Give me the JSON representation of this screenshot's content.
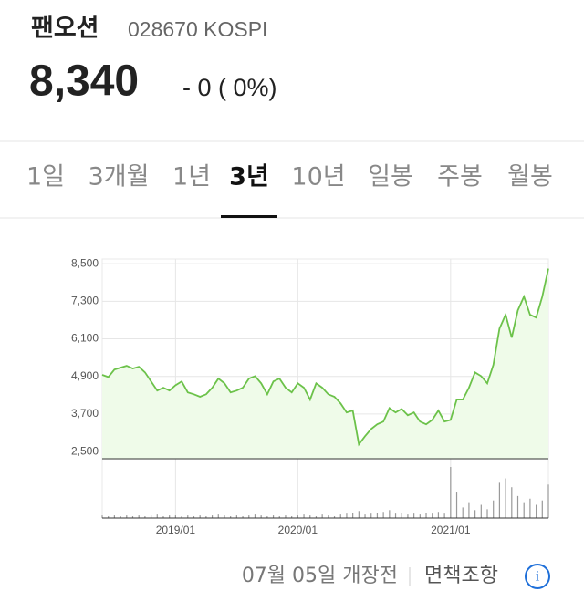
{
  "header": {
    "name": "팬오션",
    "code": "028670 KOSPI",
    "price": "8,340",
    "change": "- 0 ( 0%)"
  },
  "tabs": {
    "items": [
      "1일",
      "3개월",
      "1년",
      "3년",
      "10년",
      "일봉",
      "주봉",
      "월봉"
    ],
    "active": 3
  },
  "footer": {
    "status": "07월 05일 개장전",
    "disclaimer": "면책조항"
  },
  "chart_data": [
    {
      "type": "line",
      "color": "#6cc24a",
      "fill": "#effbe9",
      "categories": [
        null,
        null,
        null,
        null,
        null,
        null,
        null,
        null,
        null,
        null,
        null,
        null,
        "2019/01",
        null,
        null,
        null,
        null,
        null,
        null,
        null,
        null,
        null,
        null,
        null,
        null,
        null,
        null,
        null,
        null,
        null,
        null,
        null,
        "2020/01",
        null,
        null,
        null,
        null,
        null,
        null,
        null,
        null,
        null,
        null,
        null,
        null,
        null,
        null,
        null,
        null,
        null,
        null,
        null,
        null,
        null,
        null,
        null,
        null,
        "2021/01",
        null,
        null,
        null,
        null,
        null,
        null,
        null,
        null,
        null,
        null,
        null,
        null,
        null,
        null,
        null,
        null
      ],
      "values": [
        4950,
        4880,
        5120,
        5180,
        5240,
        5150,
        5210,
        5030,
        4740,
        4450,
        4540,
        4450,
        4620,
        4740,
        4390,
        4330,
        4250,
        4330,
        4540,
        4830,
        4680,
        4390,
        4450,
        4540,
        4830,
        4910,
        4680,
        4330,
        4740,
        4830,
        4540,
        4390,
        4680,
        4540,
        4160,
        4680,
        4540,
        4330,
        4250,
        4040,
        3750,
        3810,
        2730,
        2990,
        3220,
        3370,
        3460,
        3890,
        3750,
        3860,
        3660,
        3750,
        3460,
        3370,
        3510,
        3810,
        3460,
        3510,
        4160,
        4160,
        4540,
        5030,
        4910,
        4680,
        5270,
        6430,
        6870,
        6140,
        7010,
        7450,
        6870,
        6780,
        7450,
        8340
      ],
      "ylim": [
        2270,
        8650
      ],
      "yticks": [
        {
          "value": 2500,
          "label": "2,500"
        },
        {
          "value": 3700,
          "label": "3,700"
        },
        {
          "value": 4900,
          "label": "4,900"
        },
        {
          "value": 6100,
          "label": "6,100"
        },
        {
          "value": 7300,
          "label": "7,300"
        },
        {
          "value": 8500,
          "label": "8,500"
        }
      ],
      "grid": true
    },
    {
      "type": "bar",
      "color": "#999999",
      "values": [
        3,
        2,
        3,
        2,
        3,
        2,
        3,
        2,
        3,
        4,
        2,
        3,
        3,
        2,
        3,
        2,
        3,
        2,
        3,
        4,
        3,
        2,
        3,
        2,
        3,
        4,
        3,
        2,
        3,
        2,
        3,
        2,
        3,
        4,
        3,
        2,
        4,
        3,
        2,
        4,
        5,
        6,
        8,
        4,
        5,
        6,
        7,
        9,
        5,
        6,
        4,
        5,
        4,
        6,
        5,
        7,
        5,
        58,
        30,
        12,
        18,
        9,
        15,
        10,
        20,
        40,
        45,
        35,
        25,
        18,
        22,
        15,
        20,
        38
      ]
    }
  ]
}
